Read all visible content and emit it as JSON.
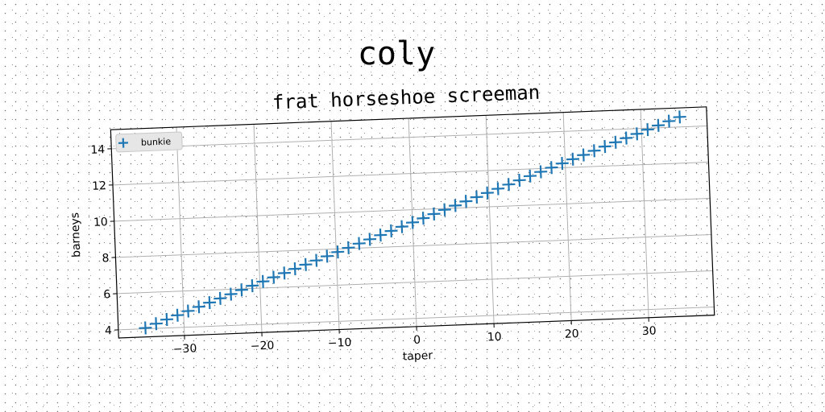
{
  "suptitle": "coly",
  "chart_data": {
    "type": "scatter",
    "title": "frat horseshoe screeman",
    "xlabel": "taper",
    "ylabel": "barneys",
    "xlim": [
      -38.5,
      38.5
    ],
    "ylim": [
      3.55,
      15.05
    ],
    "xticks": [
      -30,
      -20,
      -10,
      0,
      10,
      20,
      30
    ],
    "xtick_labels": [
      "−30",
      "−20",
      "−10",
      "0",
      "10",
      "20",
      "30"
    ],
    "yticks": [
      4,
      6,
      8,
      10,
      12,
      14
    ],
    "ytick_labels": [
      "4",
      "6",
      "8",
      "10",
      "12",
      "14"
    ],
    "grid": true,
    "legend_position": "top-left",
    "series": [
      {
        "name": "bunkie",
        "marker": "plus",
        "color": "#1f77b4",
        "x": [
          -35,
          -33.6,
          -32.2,
          -30.8,
          -29.4,
          -28,
          -26.6,
          -25.2,
          -23.8,
          -22.4,
          -21,
          -19.6,
          -18.2,
          -16.8,
          -15.4,
          -14,
          -12.6,
          -11.2,
          -9.8,
          -8.4,
          -7,
          -5.6,
          -4.2,
          -2.8,
          -1.4,
          0,
          1.4,
          2.8,
          4.2,
          5.6,
          7,
          8.4,
          9.8,
          11.2,
          12.6,
          14,
          15.4,
          16.8,
          18.2,
          19.6,
          21,
          22.4,
          23.8,
          25.2,
          26.6,
          28,
          29.4,
          30.8,
          32.2,
          33.6,
          35
        ],
        "y": [
          4.05,
          4.26,
          4.47,
          4.68,
          4.89,
          5.1,
          5.31,
          5.52,
          5.73,
          5.94,
          6.15,
          6.36,
          6.57,
          6.78,
          6.99,
          7.2,
          7.41,
          7.62,
          7.83,
          8.04,
          8.25,
          8.46,
          8.67,
          8.88,
          9.09,
          9.3,
          9.51,
          9.72,
          9.93,
          10.14,
          10.35,
          10.56,
          10.77,
          10.98,
          11.19,
          11.4,
          11.61,
          11.82,
          12.03,
          12.24,
          12.45,
          12.66,
          12.87,
          13.08,
          13.29,
          13.5,
          13.71,
          13.92,
          14.13,
          14.34,
          14.55
        ]
      }
    ]
  }
}
